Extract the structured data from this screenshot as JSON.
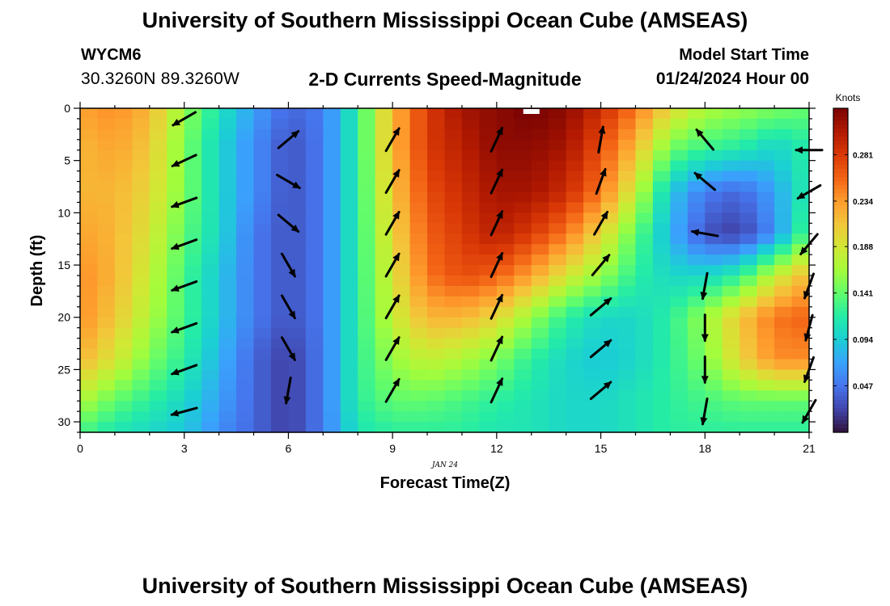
{
  "header": {
    "title": "University of Southern Mississippi Ocean Cube (AMSEAS)",
    "station_id": "WYCM6",
    "coords": "30.3260N  89.3260W",
    "subtitle": "2-D Currents Speed-Magnitude",
    "model_start_label": "Model Start Time",
    "model_start_value": "01/24/2024 Hour 00"
  },
  "footer": {
    "title": "University of Southern Mississippi Ocean Cube (AMSEAS)"
  },
  "chart_data": {
    "type": "heatmap",
    "x": [
      0,
      1,
      2,
      3,
      4,
      5,
      6,
      7,
      8,
      9,
      10,
      11,
      12,
      13,
      14,
      15,
      16,
      17,
      18,
      19,
      20,
      21
    ],
    "y": [
      0,
      3.5,
      8,
      12,
      16,
      20,
      24,
      28,
      31
    ],
    "xlabel": "Forecast Time(Z)",
    "ylabel": "Depth (ft)",
    "date_label": "JAN 24",
    "xlim": [
      0,
      21
    ],
    "ylim": [
      0,
      31
    ],
    "y_inverted": true,
    "xticks": [
      0,
      3,
      6,
      9,
      12,
      15,
      18,
      21
    ],
    "yticks": [
      0,
      5,
      10,
      15,
      20,
      25,
      30
    ],
    "colorbar": {
      "label": "Knots",
      "ticks": [
        0.047,
        0.094,
        0.141,
        0.188,
        0.234,
        0.281
      ],
      "min": 0,
      "max": 0.328,
      "colormap": [
        "#30123b",
        "#4145ab",
        "#4675ed",
        "#39a2fc",
        "#1bcfd4",
        "#24eca6",
        "#61fc6c",
        "#a4fc3b",
        "#d1e834",
        "#f3c63a",
        "#fe9b2d",
        "#f36315",
        "#d93806",
        "#b11901",
        "#7a0403"
      ]
    },
    "values": [
      [
        0.23,
        0.24,
        0.22,
        0.16,
        0.11,
        0.07,
        0.04,
        0.05,
        0.12,
        0.22,
        0.28,
        0.31,
        0.32,
        0.33,
        0.32,
        0.29,
        0.25,
        0.2,
        0.17,
        0.16,
        0.15,
        0.14
      ],
      [
        0.22,
        0.23,
        0.21,
        0.15,
        0.1,
        0.06,
        0.03,
        0.05,
        0.12,
        0.22,
        0.28,
        0.3,
        0.32,
        0.32,
        0.31,
        0.27,
        0.22,
        0.15,
        0.13,
        0.12,
        0.1,
        0.12
      ],
      [
        0.22,
        0.22,
        0.2,
        0.15,
        0.1,
        0.06,
        0.03,
        0.05,
        0.12,
        0.21,
        0.27,
        0.29,
        0.31,
        0.31,
        0.29,
        0.25,
        0.18,
        0.09,
        0.05,
        0.04,
        0.07,
        0.12
      ],
      [
        0.23,
        0.22,
        0.19,
        0.14,
        0.1,
        0.05,
        0.03,
        0.05,
        0.12,
        0.2,
        0.26,
        0.28,
        0.3,
        0.28,
        0.25,
        0.2,
        0.14,
        0.08,
        0.03,
        0.02,
        0.06,
        0.14
      ],
      [
        0.24,
        0.22,
        0.18,
        0.13,
        0.09,
        0.05,
        0.03,
        0.05,
        0.12,
        0.19,
        0.25,
        0.27,
        0.26,
        0.23,
        0.19,
        0.16,
        0.12,
        0.1,
        0.1,
        0.12,
        0.18,
        0.22
      ],
      [
        0.24,
        0.21,
        0.17,
        0.13,
        0.09,
        0.05,
        0.03,
        0.05,
        0.12,
        0.18,
        0.22,
        0.22,
        0.2,
        0.16,
        0.12,
        0.1,
        0.1,
        0.12,
        0.16,
        0.21,
        0.25,
        0.26
      ],
      [
        0.22,
        0.19,
        0.15,
        0.12,
        0.08,
        0.04,
        0.02,
        0.05,
        0.12,
        0.16,
        0.18,
        0.17,
        0.15,
        0.12,
        0.1,
        0.09,
        0.1,
        0.12,
        0.15,
        0.2,
        0.24,
        0.24
      ],
      [
        0.17,
        0.14,
        0.12,
        0.1,
        0.07,
        0.04,
        0.02,
        0.05,
        0.12,
        0.14,
        0.14,
        0.13,
        0.12,
        0.11,
        0.1,
        0.1,
        0.11,
        0.12,
        0.13,
        0.14,
        0.14,
        0.14
      ],
      [
        0.13,
        0.11,
        0.1,
        0.09,
        0.06,
        0.04,
        0.02,
        0.05,
        0.11,
        0.12,
        0.12,
        0.12,
        0.11,
        0.11,
        0.1,
        0.1,
        0.11,
        0.12,
        0.12,
        0.12,
        0.12,
        0.12
      ]
    ],
    "vectors": [
      {
        "time": 3,
        "depths": [
          1,
          5,
          9,
          13,
          17,
          21,
          25,
          29
        ],
        "angles": [
          210,
          205,
          200,
          200,
          200,
          200,
          200,
          195
        ]
      },
      {
        "time": 6,
        "depths": [
          3,
          7,
          11,
          15,
          19,
          23,
          27
        ],
        "angles": [
          40,
          330,
          320,
          300,
          300,
          300,
          260
        ]
      },
      {
        "time": 9,
        "depths": [
          3,
          7,
          11,
          15,
          19,
          23,
          27
        ],
        "angles": [
          60,
          60,
          60,
          60,
          60,
          60,
          60
        ]
      },
      {
        "time": 12,
        "depths": [
          3,
          7,
          11,
          15,
          19,
          23,
          27
        ],
        "angles": [
          65,
          65,
          65,
          65,
          65,
          65,
          65
        ]
      },
      {
        "time": 15,
        "depths": [
          3,
          7,
          11,
          15,
          19,
          23,
          27
        ],
        "angles": [
          80,
          70,
          60,
          50,
          40,
          40,
          40
        ]
      },
      {
        "time": 18,
        "depths": [
          3,
          7,
          12,
          17,
          21,
          25,
          29
        ],
        "angles": [
          130,
          140,
          170,
          260,
          270,
          270,
          260
        ]
      },
      {
        "time": 21,
        "depths": [
          4,
          8,
          13,
          17,
          21,
          25,
          29
        ],
        "angles": [
          180,
          210,
          230,
          250,
          255,
          250,
          240
        ]
      }
    ],
    "marker": {
      "time": 13,
      "label_type": "white-dash"
    }
  }
}
